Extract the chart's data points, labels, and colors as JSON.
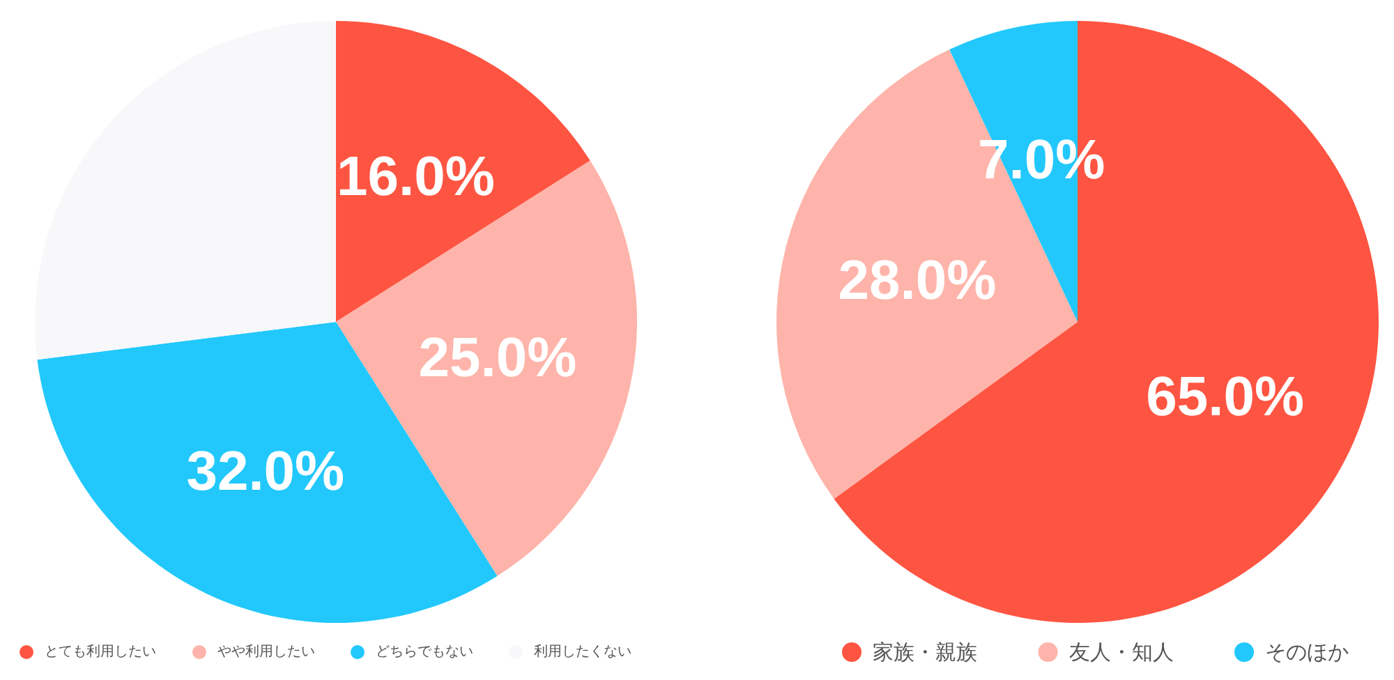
{
  "chart_data": [
    {
      "type": "pie",
      "categories": [
        "とても利用したい",
        "やや利用したい",
        "どちらでもない",
        "利用したくない"
      ],
      "values": [
        16,
        25,
        32,
        27
      ],
      "colors": [
        "#fe5542",
        "#feb4aa",
        "#22c8fc",
        "#f8f8fa"
      ],
      "value_labels": [
        "16.0%",
        "25.0%",
        "32.0%",
        null
      ],
      "legend": "bottom"
    },
    {
      "type": "pie",
      "categories": [
        "家族・親族",
        "友人・知人",
        "そのほか"
      ],
      "values": [
        65,
        28,
        7
      ],
      "colors": [
        "#fe5542",
        "#feb4aa",
        "#22c8fc"
      ],
      "value_labels": [
        "65.0%",
        "28.0%",
        "7.0%"
      ],
      "legend": "bottom"
    }
  ]
}
